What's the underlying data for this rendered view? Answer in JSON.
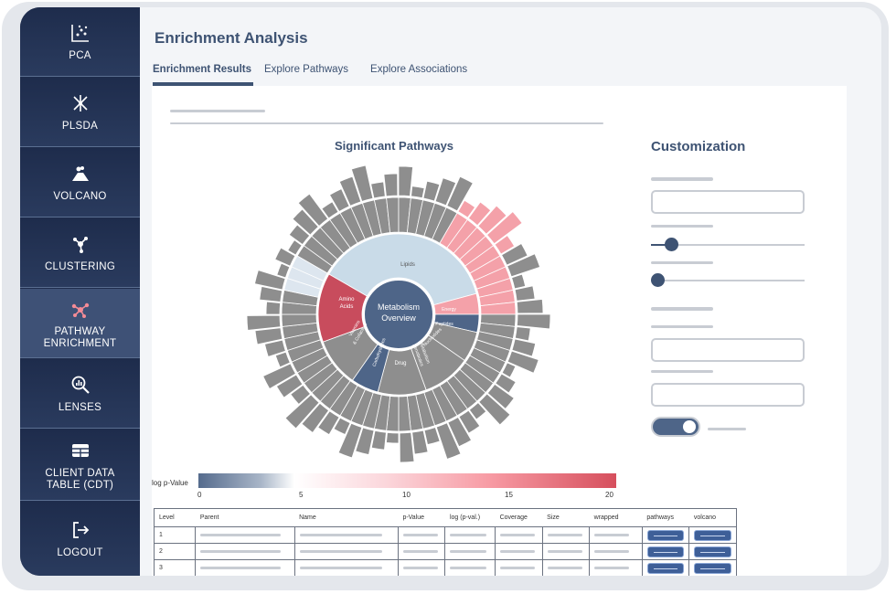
{
  "sidebar": {
    "items": [
      {
        "label": "PCA",
        "icon": "scatter-plot-icon"
      },
      {
        "label": "PLSDA",
        "icon": "network-burst-icon"
      },
      {
        "label": "VOLCANO",
        "icon": "volcano-icon"
      },
      {
        "label": "CLUSTERING",
        "icon": "cluster-nodes-icon"
      },
      {
        "label": "PATHWAY\nENRICHMENT",
        "icon": "pathway-network-icon"
      },
      {
        "label": "LENSES",
        "icon": "magnifier-chart-icon"
      },
      {
        "label": "CLIENT DATA\nTABLE (CDT)",
        "icon": "table-grid-icon"
      },
      {
        "label": "LOGOUT",
        "icon": "logout-arrow-icon"
      }
    ]
  },
  "header": {
    "title": "Enrichment Analysis"
  },
  "tabs": [
    {
      "label": "Enrichment Results"
    },
    {
      "label": "Explore Pathways"
    },
    {
      "label": "Explore Associations"
    }
  ],
  "chart": {
    "title": "Significant Pathways",
    "center_label_1": "Metabolism",
    "center_label_2": "Overview",
    "segments": {
      "lipids": "Lipids",
      "amino1": "Amino",
      "amino2": "Acids",
      "energy": "Energy",
      "peptides": "Peptides",
      "nucleotides": "Nucleotides",
      "vitamins1": "Vitamins",
      "vitamins2": "& Cofactors",
      "carbohydrates": "Carbohydrates",
      "drug": "Drug",
      "xeno1": "Xenobiotics",
      "xeno2": "Metabolism"
    },
    "legend_label": "log p-Value",
    "legend_ticks": [
      "0",
      "5",
      "10",
      "15",
      "20"
    ],
    "colors": {
      "center": "#4e6588",
      "lipids": "#c9dbe8",
      "amino": "#c84c5d",
      "gray": "#8e8e8e",
      "pink": "#f4a1a9"
    }
  },
  "customization": {
    "title": "Customization"
  },
  "table": {
    "headers": [
      "Level",
      "Parent",
      "Name",
      "p-Value",
      "log (p-val.)",
      "Coverage",
      "Size",
      "wrapped",
      "pathways",
      "volcano"
    ],
    "rows": [
      {
        "level": "1"
      },
      {
        "level": "2"
      },
      {
        "level": "3"
      }
    ]
  }
}
